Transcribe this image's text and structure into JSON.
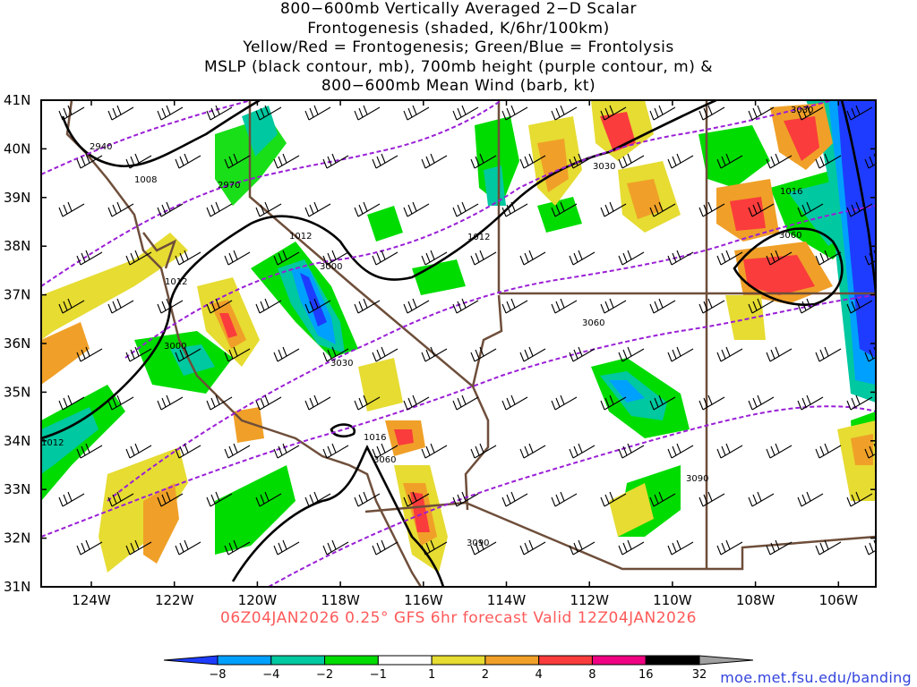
{
  "title_lines": [
    "800−600mb Vertically Averaged 2−D Scalar",
    "Frontogenesis (shaded, K/6hr/100km)",
    "Yellow/Red = Frontogenesis;  Green/Blue = Frontolysis",
    "MSLP (black contour, mb), 700mb height (purple contour, m) &",
    "800−600mb Mean Wind (barb, kt)"
  ],
  "lat_labels": [
    "41N",
    "40N",
    "39N",
    "38N",
    "37N",
    "36N",
    "35N",
    "34N",
    "33N",
    "32N",
    "31N"
  ],
  "lon_labels": [
    "124W",
    "122W",
    "120W",
    "118W",
    "116W",
    "114W",
    "112W",
    "110W",
    "108W",
    "106W"
  ],
  "valid_line": "06Z04JAN2026 0.25° GFS 6hr forecast Valid 12Z04JAN2026",
  "credit": "moe.met.fsu.edu/banding",
  "colorbar": {
    "labels": [
      "−8",
      "−4",
      "−2",
      "−1",
      "1",
      "2",
      "4",
      "8",
      "16",
      "32"
    ],
    "colors": [
      "#1e3cff",
      "#00a0ff",
      "#00c8a0",
      "#00dc00",
      "#ffffff",
      "#e6dc32",
      "#f0a028",
      "#fa3c3c",
      "#f00082",
      "#000000",
      "#a0a0a0"
    ]
  },
  "contour_labels": [
    {
      "id": "slp-1008",
      "text": "1008"
    },
    {
      "id": "z-2940",
      "text": "2940"
    },
    {
      "id": "z-2970",
      "text": "2970"
    },
    {
      "id": "slp-1012-a",
      "text": "1012"
    },
    {
      "id": "z-3000-a",
      "text": "3000"
    },
    {
      "id": "slp-1012-b",
      "text": "1012"
    },
    {
      "id": "z-3000-b",
      "text": "3000"
    },
    {
      "id": "slp-1012-c",
      "text": "1012"
    },
    {
      "id": "z-3030-a",
      "text": "3030"
    },
    {
      "id": "slp-1012-d",
      "text": "1012"
    },
    {
      "id": "slp-1016-a",
      "text": "1016"
    },
    {
      "id": "z-3060-a",
      "text": "3060"
    },
    {
      "id": "z-3090-a",
      "text": "3090"
    },
    {
      "id": "z-3030-b",
      "text": "3030"
    },
    {
      "id": "z-3060-b",
      "text": "3060"
    },
    {
      "id": "z-3090-b",
      "text": "3090"
    },
    {
      "id": "slp-1016-b",
      "text": "1016"
    },
    {
      "id": "z-3060-c",
      "text": "3060"
    },
    {
      "id": "z-3030-c",
      "text": "3030"
    }
  ],
  "colors": {
    "border": "#6e4e3a",
    "mslp": "#000000",
    "height": "#9a1fd6",
    "valid_text": "#ff5a5a",
    "credit_text": "#3344dd"
  }
}
